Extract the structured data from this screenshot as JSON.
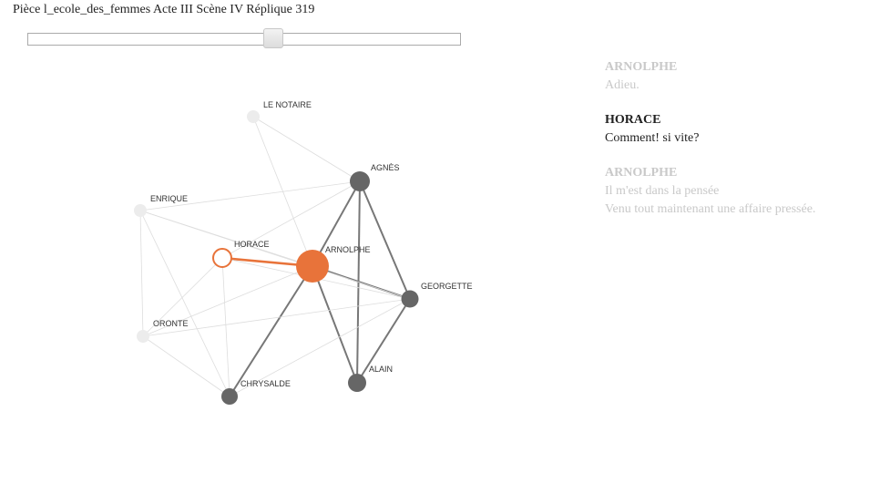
{
  "header": {
    "title": "Pièce l_ecole_des_femmes Acte III Scène IV Réplique 319"
  },
  "slider": {
    "value_fraction": 0.57
  },
  "graph": {
    "nodes": [
      {
        "id": "le-notaire",
        "label": "LE NOTAIRE",
        "state": "inactive"
      },
      {
        "id": "agnes",
        "label": "AGNÈS",
        "state": "present"
      },
      {
        "id": "enrique",
        "label": "ENRIQUE",
        "state": "inactive"
      },
      {
        "id": "horace",
        "label": "HORACE",
        "state": "speaking"
      },
      {
        "id": "arnolphe",
        "label": "ARNOLPHE",
        "state": "main"
      },
      {
        "id": "georgette",
        "label": "GEORGETTE",
        "state": "present"
      },
      {
        "id": "oronte",
        "label": "ORONTE",
        "state": "inactive"
      },
      {
        "id": "alain",
        "label": "ALAIN",
        "state": "present"
      },
      {
        "id": "chrysalde",
        "label": "CHRYSALDE",
        "state": "present"
      }
    ],
    "edges": [
      {
        "source": "arnolphe",
        "target": "horace",
        "state": "active"
      },
      {
        "source": "arnolphe",
        "target": "agnes",
        "state": "strong"
      },
      {
        "source": "arnolphe",
        "target": "georgette",
        "state": "strong"
      },
      {
        "source": "arnolphe",
        "target": "alain",
        "state": "strong"
      },
      {
        "source": "arnolphe",
        "target": "chrysalde",
        "state": "strong"
      },
      {
        "source": "agnes",
        "target": "georgette",
        "state": "strong"
      },
      {
        "source": "agnes",
        "target": "alain",
        "state": "strong"
      },
      {
        "source": "georgette",
        "target": "alain",
        "state": "strong"
      },
      {
        "source": "agnes",
        "target": "horace",
        "state": "faint"
      },
      {
        "source": "enrique",
        "target": "agnes",
        "state": "faint"
      },
      {
        "source": "enrique",
        "target": "arnolphe",
        "state": "faint"
      },
      {
        "source": "enrique",
        "target": "georgette",
        "state": "faint"
      },
      {
        "source": "enrique",
        "target": "oronte",
        "state": "faint"
      },
      {
        "source": "enrique",
        "target": "chrysalde",
        "state": "faint"
      },
      {
        "source": "le-notaire",
        "target": "arnolphe",
        "state": "faint"
      },
      {
        "source": "le-notaire",
        "target": "agnes",
        "state": "faint"
      },
      {
        "source": "oronte",
        "target": "arnolphe",
        "state": "faint"
      },
      {
        "source": "oronte",
        "target": "georgette",
        "state": "faint"
      },
      {
        "source": "oronte",
        "target": "horace",
        "state": "faint"
      },
      {
        "source": "oronte",
        "target": "chrysalde",
        "state": "faint"
      },
      {
        "source": "horace",
        "target": "chrysalde",
        "state": "faint"
      },
      {
        "source": "horace",
        "target": "georgette",
        "state": "faint"
      },
      {
        "source": "chrysalde",
        "target": "georgette",
        "state": "faint"
      }
    ]
  },
  "colors": {
    "accent": "#e8733a",
    "present": "#666666",
    "inactive": "#ececec",
    "strong_edge": "#777777",
    "faint_edge": "#dddddd",
    "text_faded": "#c9c9c9",
    "text_active": "#222222"
  },
  "dialogue": [
    {
      "speaker": "ARNOLPHE",
      "lines": [
        "Adieu."
      ],
      "state": "faded"
    },
    {
      "speaker": "HORACE",
      "lines": [
        "Comment! si vite?"
      ],
      "state": "active"
    },
    {
      "speaker": "ARNOLPHE",
      "lines": [
        "Il m'est dans la pensée",
        "Venu tout maintenant une affaire pressée."
      ],
      "state": "faded"
    }
  ]
}
